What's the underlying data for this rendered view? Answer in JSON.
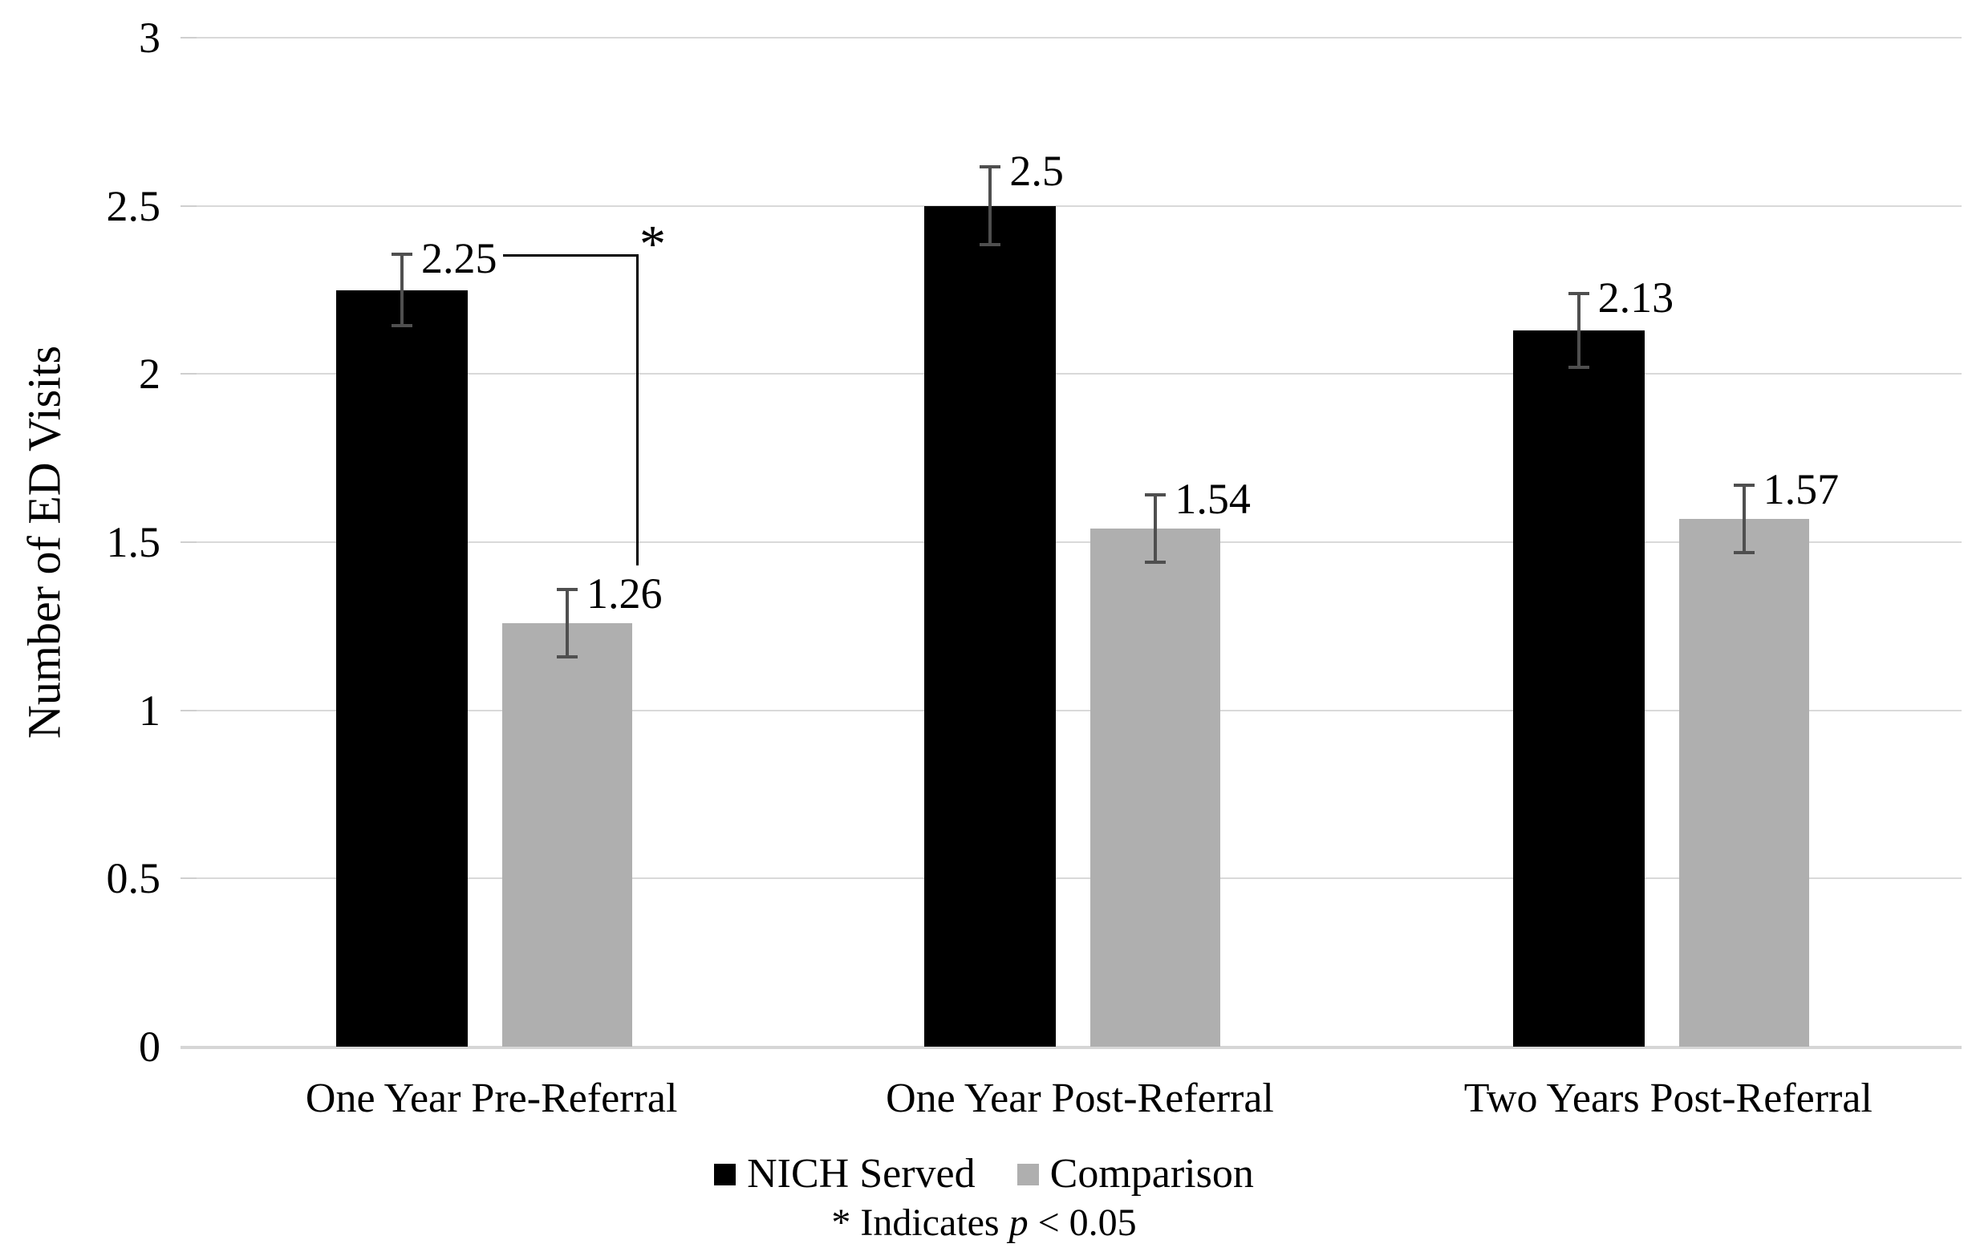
{
  "chart_data": {
    "type": "bar",
    "title": "",
    "xlabel": "",
    "ylabel": "Number of ED Visits",
    "ylim": [
      0,
      3
    ],
    "yticks": [
      0,
      0.5,
      1,
      1.5,
      2,
      2.5,
      3
    ],
    "ytick_labels": [
      "0",
      "0.5",
      "1",
      "1.5",
      "2",
      "2.5",
      "3"
    ],
    "grid": true,
    "legend_position": "bottom-center",
    "categories": [
      "One Year Pre-Referral",
      "One Year Post-Referral",
      "Two Years Post-Referral"
    ],
    "series": [
      {
        "name": "NICH Served",
        "color": "#000000",
        "values": [
          2.25,
          2.5,
          2.13
        ],
        "value_labels": [
          "2.25",
          "2.5",
          "2.13"
        ],
        "errors": [
          0.107,
          0.115,
          0.11
        ]
      },
      {
        "name": "Comparison",
        "color": "#AFAFAF",
        "values": [
          1.26,
          1.54,
          1.57
        ],
        "value_labels": [
          "1.26",
          "1.54",
          "1.57"
        ],
        "errors": [
          0.1,
          0.1,
          0.1
        ]
      }
    ],
    "annotation": {
      "symbol": "*",
      "category": "One Year Pre-Referral",
      "between_labels": [
        "2.25",
        "1.26"
      ]
    }
  },
  "footnote": {
    "prefix": "* Indicates ",
    "p": "p",
    "suffix": " < 0.05"
  },
  "colors": {
    "gridline": "#D9D9D9",
    "axis_line": "#D6D6D6",
    "error_bar": "#4F4F4F",
    "text": "#000000"
  }
}
